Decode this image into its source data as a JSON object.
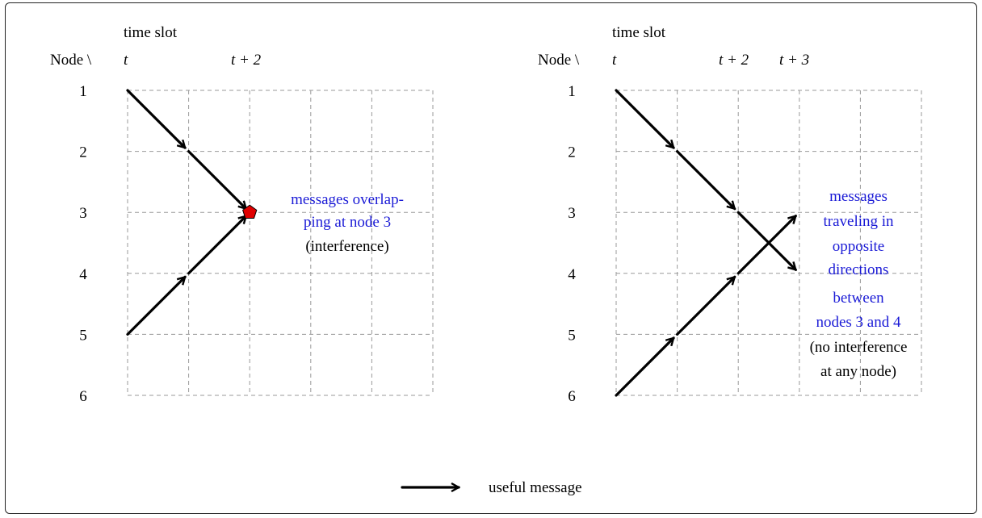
{
  "panels": [
    {
      "id": "left",
      "header": {
        "time_slot": "time slot",
        "node_corner": "Node \\",
        "t0": "t",
        "t2": "t + 2"
      },
      "node_labels": [
        "1",
        "2",
        "3",
        "4",
        "5",
        "6"
      ],
      "arrows": [
        {
          "from": [
            0,
            1
          ],
          "to": [
            1,
            2
          ]
        },
        {
          "from": [
            1,
            2
          ],
          "to": [
            2,
            3
          ]
        },
        {
          "from": [
            0,
            5
          ],
          "to": [
            1,
            4
          ]
        },
        {
          "from": [
            1,
            4
          ],
          "to": [
            2,
            3
          ]
        }
      ],
      "collision_marker": {
        "color": "#e00000",
        "slot": 2,
        "node": 3
      },
      "annotation": {
        "blue_lines": [
          "messages overlap-",
          "ping at node 3"
        ],
        "black_lines": [
          "(interference)"
        ]
      }
    },
    {
      "id": "right",
      "header": {
        "time_slot": "time slot",
        "node_corner": "Node \\",
        "t0": "t",
        "t2": "t + 2",
        "t3": "t + 3"
      },
      "node_labels": [
        "1",
        "2",
        "3",
        "4",
        "5",
        "6"
      ],
      "arrows": [
        {
          "from": [
            0,
            1
          ],
          "to": [
            1,
            2
          ]
        },
        {
          "from": [
            1,
            2
          ],
          "to": [
            2,
            3
          ]
        },
        {
          "from": [
            2,
            3
          ],
          "to": [
            3,
            4
          ]
        },
        {
          "from": [
            0,
            6
          ],
          "to": [
            1,
            5
          ]
        },
        {
          "from": [
            1,
            5
          ],
          "to": [
            2,
            4
          ]
        },
        {
          "from": [
            2,
            4
          ],
          "to": [
            3,
            3
          ]
        }
      ],
      "annotation": {
        "blue_lines": [
          "messages",
          "traveling in",
          "opposite",
          "directions",
          "between",
          "nodes 3 and 4"
        ],
        "black_lines": [
          "(no interference",
          "at any node)"
        ]
      }
    }
  ],
  "legend": {
    "label": "useful message"
  },
  "colors": {
    "annotation_blue": "#1a1ad6",
    "marker_red": "#e00000",
    "grid": "#9a9a9a"
  }
}
